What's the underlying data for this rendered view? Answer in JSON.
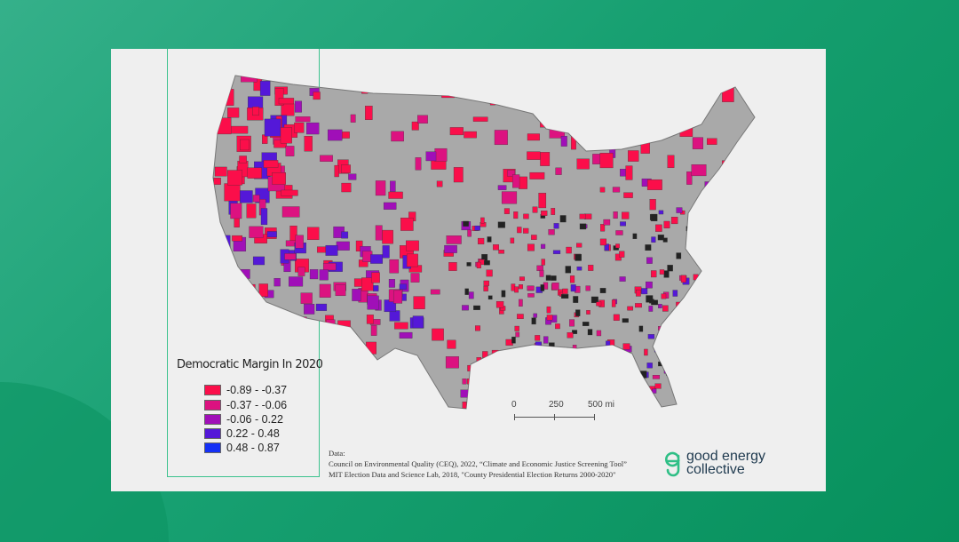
{
  "legend": {
    "title": "Democratic Margin In 2020",
    "items": [
      {
        "label": "-0.89 - -0.37",
        "color": "#fb0e4a"
      },
      {
        "label": "-0.37 - -0.06",
        "color": "#dc1280"
      },
      {
        "label": "-0.06 - 0.22",
        "color": "#a00fb8"
      },
      {
        "label": "0.22 - 0.48",
        "color": "#5418d8"
      },
      {
        "label": "0.48 - 0.87",
        "color": "#1430f5"
      }
    ]
  },
  "scale_bar": {
    "labels": [
      "0",
      "250",
      "500 mi"
    ]
  },
  "source": {
    "heading": "Data:",
    "lines": [
      "Council on Environmental Quality (CEQ), 2022, “Climate and Economic Justice Screening Tool”",
      "MIT Election Data and Science Lab, 2018, \"County Presidential Election Returns 2000-2020\""
    ]
  },
  "logo": {
    "line1": "good energy",
    "line2": "collective",
    "color": "#2fbf86"
  },
  "map": {
    "no_data_color": "#a9a9a9"
  }
}
